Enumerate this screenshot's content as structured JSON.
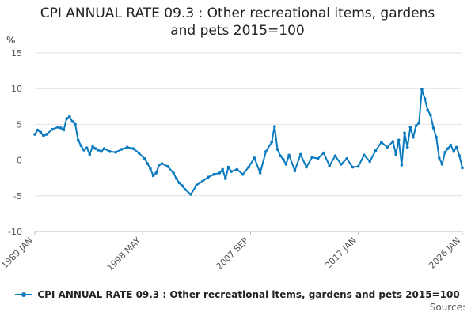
{
  "chart_data": {
    "type": "line",
    "title_lines": [
      "CPI ANNUAL RATE 09.3 : Other recreational items, gardens",
      "and pets 2015=100"
    ],
    "ylabel": "%",
    "ylim": [
      -10,
      15
    ],
    "yticks": [
      -10,
      -5,
      0,
      5,
      10,
      15
    ],
    "xlim": [
      1989.0,
      2026.0
    ],
    "xtick_labels": [
      {
        "x": 1989.0,
        "label": "1989 JAN"
      },
      {
        "x": 1998.33,
        "label": "1998 MAY"
      },
      {
        "x": 2007.67,
        "label": "2007 SEP"
      },
      {
        "x": 2017.0,
        "label": "2017 JAN"
      },
      {
        "x": 2026.0,
        "label": "2026 JAN"
      }
    ],
    "series": [
      {
        "name": "CPI ANNUAL RATE 09.3 : Other recreational items, gardens and pets 2015=100",
        "color": "#0a7abf",
        "x": [
          1989.0,
          1989.25,
          1989.5,
          1989.75,
          1990.0,
          1990.5,
          1991.0,
          1991.25,
          1991.5,
          1991.75,
          1992.0,
          1992.25,
          1992.5,
          1992.75,
          1993.0,
          1993.25,
          1993.5,
          1993.75,
          1994.0,
          1994.25,
          1994.5,
          1994.75,
          1995.0,
          1995.5,
          1996.0,
          1996.5,
          1997.0,
          1997.5,
          1998.0,
          1998.5,
          1998.75,
          1999.0,
          1999.25,
          1999.5,
          1999.75,
          2000.0,
          2000.5,
          2001.0,
          2001.25,
          2001.5,
          2001.75,
          2002.0,
          2002.5,
          2003.0,
          2003.5,
          2004.0,
          2004.5,
          2005.0,
          2005.25,
          2005.5,
          2005.75,
          2006.0,
          2006.5,
          2007.0,
          2007.5,
          2008.0,
          2008.5,
          2009.0,
          2009.5,
          2009.75,
          2010.0,
          2010.25,
          2010.5,
          2010.75,
          2011.0,
          2011.5,
          2012.0,
          2012.5,
          2013.0,
          2013.5,
          2014.0,
          2014.5,
          2015.0,
          2015.5,
          2016.0,
          2016.5,
          2017.0,
          2017.5,
          2018.0,
          2018.5,
          2019.0,
          2019.5,
          2020.0,
          2020.25,
          2020.5,
          2020.75,
          2021.0,
          2021.25,
          2021.5,
          2021.75,
          2022.0,
          2022.25,
          2022.5,
          2022.75,
          2023.0,
          2023.25,
          2023.5,
          2023.75,
          2024.0,
          2024.25,
          2024.5,
          2024.75,
          2025.0,
          2025.25,
          2025.5,
          2025.75,
          2026.0
        ],
        "values": [
          3.6,
          4.2,
          3.9,
          3.4,
          3.6,
          4.3,
          4.6,
          4.5,
          4.2,
          5.8,
          6.1,
          5.4,
          5.0,
          2.8,
          2.0,
          1.4,
          1.7,
          0.8,
          1.9,
          1.6,
          1.4,
          1.2,
          1.6,
          1.2,
          1.1,
          1.5,
          1.8,
          1.6,
          1.0,
          0.2,
          -0.5,
          -1.2,
          -2.2,
          -1.8,
          -0.7,
          -0.5,
          -0.9,
          -1.8,
          -2.6,
          -3.2,
          -3.6,
          -4.1,
          -4.8,
          -3.5,
          -3.0,
          -2.4,
          -2.0,
          -1.8,
          -1.3,
          -2.6,
          -1.0,
          -1.6,
          -1.3,
          -2.0,
          -1.0,
          0.3,
          -1.8,
          1.2,
          2.5,
          4.7,
          1.5,
          0.6,
          0.1,
          -0.6,
          0.7,
          -1.5,
          0.8,
          -1.0,
          0.4,
          0.2,
          1.0,
          -0.8,
          0.6,
          -0.6,
          0.2,
          -1.0,
          -0.9,
          0.7,
          -0.2,
          1.3,
          2.5,
          1.8,
          2.6,
          0.8,
          2.8,
          -0.7,
          3.8,
          1.8,
          4.6,
          3.2,
          4.8,
          5.2,
          9.9,
          8.6,
          7.0,
          6.3,
          4.5,
          3.2,
          0.3,
          -0.6,
          1.1,
          1.6,
          2.1,
          1.2,
          1.8,
          0.6,
          -1.1
        ]
      }
    ],
    "legend": "CPI ANNUAL RATE 09.3 : Other recreational items, gardens and pets 2015=100",
    "source_label": "Source:"
  }
}
